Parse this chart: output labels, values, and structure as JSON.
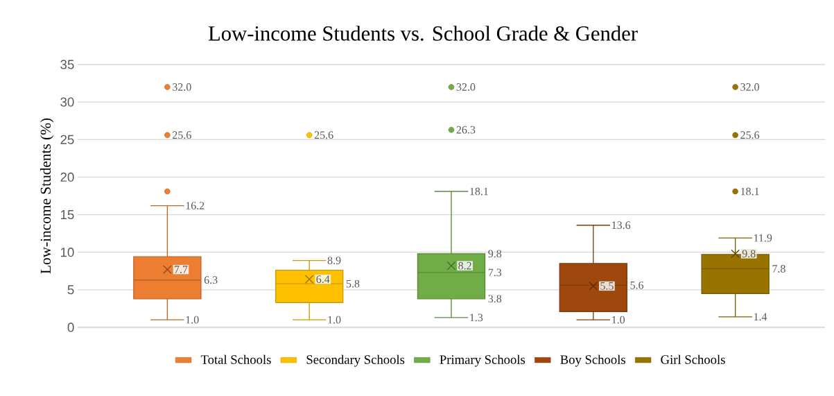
{
  "chart_data": {
    "type": "box",
    "title": "Low-income Students vs. School Grade & Gender",
    "ylabel": "Low-income Students (%)",
    "categories": [
      null
    ],
    "ylim": [
      0,
      35
    ],
    "yticks": [
      0,
      5,
      10,
      15,
      20,
      25,
      30,
      35
    ],
    "grid": "y",
    "legend": "bottom",
    "marker": "cross",
    "tick_labels": "y",
    "series": [
      {
        "name": "Total Schools",
        "color": "#ed7d31",
        "boxes": [
          {
            "low": 1.0,
            "q1": 3.8,
            "median": 6.3,
            "q3": 9.4,
            "high": 16.2,
            "mean": 7.7,
            "outliers": [
              18.1,
              25.6,
              32.0
            ]
          }
        ]
      },
      {
        "name": "Secondary Schools",
        "color": "#ffc000",
        "boxes": [
          {
            "low": 1.0,
            "q1": 3.3,
            "median": 5.8,
            "q3": 7.6,
            "high": 8.9,
            "mean": 6.4,
            "outliers": [
              25.6
            ]
          }
        ]
      },
      {
        "name": "Primary Schools",
        "color": "#70ad47",
        "boxes": [
          {
            "low": 1.3,
            "q1": 3.8,
            "median": 7.3,
            "q3": 9.8,
            "high": 18.1,
            "mean": 8.2,
            "outliers": [
              26.3,
              32.0
            ]
          }
        ]
      },
      {
        "name": "Boy Schools",
        "color": "#9e480e",
        "boxes": [
          {
            "low": 1.0,
            "q1": 2.1,
            "median": 5.6,
            "q3": 8.5,
            "high": 13.6,
            "mean": 5.5
          }
        ]
      },
      {
        "name": "Girl Schools",
        "color": "#997300",
        "boxes": [
          {
            "low": 1.4,
            "q1": 4.5,
            "median": 7.8,
            "q3": 9.7,
            "high": 11.9,
            "mean": 9.8,
            "outliers": [
              18.1,
              25.6,
              32.0
            ]
          }
        ]
      }
    ],
    "annotations": [
      "25.6",
      "32.0",
      "16.2",
      "7.7",
      "6.3",
      "1.0",
      "25.6",
      "8.9",
      "6.4",
      "5.8",
      "1.0",
      "26.3",
      "32.0",
      "18.1",
      "9.8",
      "8.2",
      "7.3",
      "3.8",
      "1.3",
      "13.6",
      "5.5",
      "5.6",
      "1.0",
      "18.1",
      "25.6",
      "32.0",
      "11.9",
      "9.8",
      "7.8",
      "1.4"
    ]
  }
}
